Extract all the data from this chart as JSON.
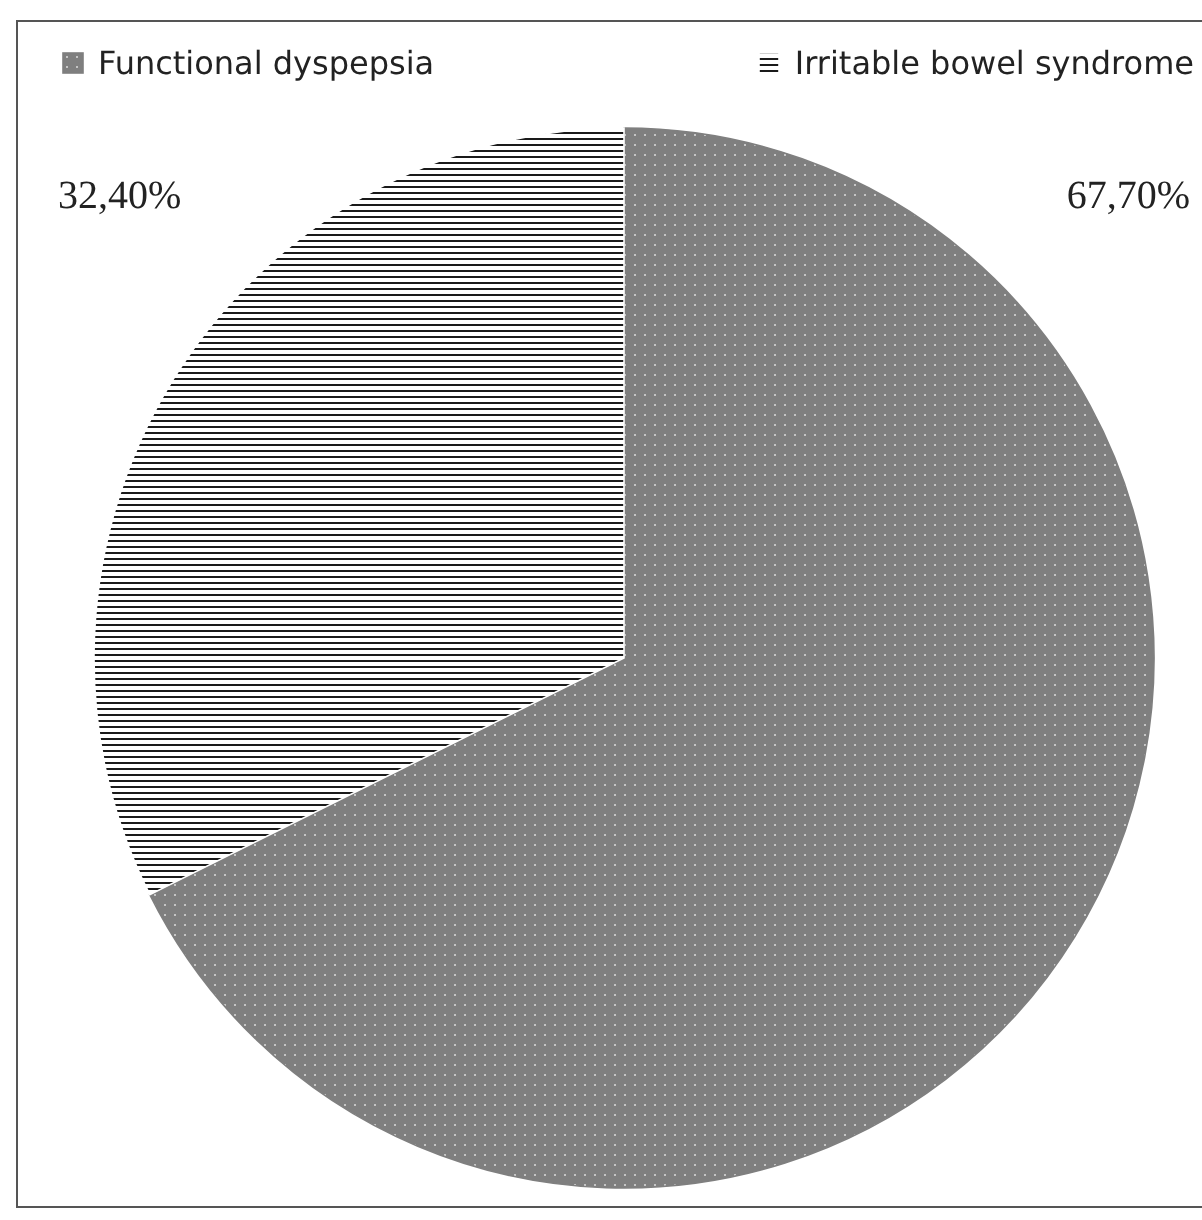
{
  "chart_data": {
    "type": "pie",
    "categories": [
      "Functional dyspepsia",
      "Irritable bowel syndrome"
    ],
    "values": [
      67.7,
      32.4
    ],
    "colors": [
      "#7f7f7f",
      "#ffffff"
    ],
    "value_labels": [
      "67,70%",
      "32,40%"
    ],
    "legend": "top"
  }
}
